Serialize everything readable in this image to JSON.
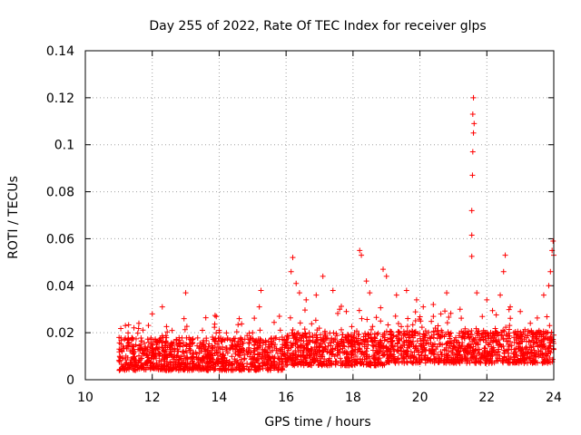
{
  "chart_data": {
    "type": "scatter",
    "title": "Day 255 of 2022, Rate Of TEC Index for receiver glps",
    "xlabel": "GPS time / hours",
    "ylabel": "ROTI / TECUs",
    "xlim": [
      10,
      24
    ],
    "ylim": [
      0,
      0.14
    ],
    "xticks": [
      "10",
      "12",
      "14",
      "16",
      "18",
      "20",
      "22",
      "24"
    ],
    "yticks": [
      "0",
      "0.02",
      "0.04",
      "0.06",
      "0.08",
      "0.1",
      "0.12",
      "0.14"
    ],
    "grid": true,
    "marker": "+",
    "color": "#ff0000",
    "x_range_of_data": [
      11.0,
      24.0
    ],
    "baseline_band": [
      0.004,
      0.018
    ],
    "series": [
      {
        "name": "ROTI",
        "notable_points": [
          {
            "x": 11.6,
            "y": 0.024
          },
          {
            "x": 12.0,
            "y": 0.028
          },
          {
            "x": 12.3,
            "y": 0.031
          },
          {
            "x": 13.0,
            "y": 0.037
          },
          {
            "x": 12.95,
            "y": 0.026
          },
          {
            "x": 13.5,
            "y": 0.021
          },
          {
            "x": 14.0,
            "y": 0.021
          },
          {
            "x": 14.6,
            "y": 0.026
          },
          {
            "x": 15.0,
            "y": 0.02
          },
          {
            "x": 15.25,
            "y": 0.038
          },
          {
            "x": 15.2,
            "y": 0.031
          },
          {
            "x": 15.8,
            "y": 0.027
          },
          {
            "x": 16.15,
            "y": 0.046
          },
          {
            "x": 16.2,
            "y": 0.052
          },
          {
            "x": 16.3,
            "y": 0.041
          },
          {
            "x": 16.4,
            "y": 0.037
          },
          {
            "x": 16.6,
            "y": 0.034
          },
          {
            "x": 16.9,
            "y": 0.036
          },
          {
            "x": 17.1,
            "y": 0.044
          },
          {
            "x": 17.4,
            "y": 0.038
          },
          {
            "x": 17.6,
            "y": 0.03
          },
          {
            "x": 17.8,
            "y": 0.029
          },
          {
            "x": 18.2,
            "y": 0.055
          },
          {
            "x": 18.25,
            "y": 0.053
          },
          {
            "x": 18.4,
            "y": 0.042
          },
          {
            "x": 18.5,
            "y": 0.037
          },
          {
            "x": 18.9,
            "y": 0.047
          },
          {
            "x": 19.0,
            "y": 0.044
          },
          {
            "x": 19.3,
            "y": 0.036
          },
          {
            "x": 19.6,
            "y": 0.038
          },
          {
            "x": 19.9,
            "y": 0.034
          },
          {
            "x": 20.1,
            "y": 0.031
          },
          {
            "x": 20.4,
            "y": 0.032
          },
          {
            "x": 20.8,
            "y": 0.037
          },
          {
            "x": 21.2,
            "y": 0.03
          },
          {
            "x": 21.55,
            "y": 0.0525
          },
          {
            "x": 21.55,
            "y": 0.0615
          },
          {
            "x": 21.55,
            "y": 0.072
          },
          {
            "x": 21.57,
            "y": 0.087
          },
          {
            "x": 21.58,
            "y": 0.097
          },
          {
            "x": 21.6,
            "y": 0.105
          },
          {
            "x": 21.62,
            "y": 0.109
          },
          {
            "x": 21.58,
            "y": 0.113
          },
          {
            "x": 21.6,
            "y": 0.12
          },
          {
            "x": 21.7,
            "y": 0.037
          },
          {
            "x": 22.0,
            "y": 0.034
          },
          {
            "x": 22.4,
            "y": 0.036
          },
          {
            "x": 22.55,
            "y": 0.053
          },
          {
            "x": 22.5,
            "y": 0.046
          },
          {
            "x": 22.7,
            "y": 0.031
          },
          {
            "x": 23.0,
            "y": 0.029
          },
          {
            "x": 23.3,
            "y": 0.024
          },
          {
            "x": 23.7,
            "y": 0.036
          },
          {
            "x": 23.85,
            "y": 0.04
          },
          {
            "x": 23.9,
            "y": 0.046
          },
          {
            "x": 23.95,
            "y": 0.055
          },
          {
            "x": 23.98,
            "y": 0.059
          },
          {
            "x": 24.0,
            "y": 0.053
          }
        ]
      }
    ]
  }
}
